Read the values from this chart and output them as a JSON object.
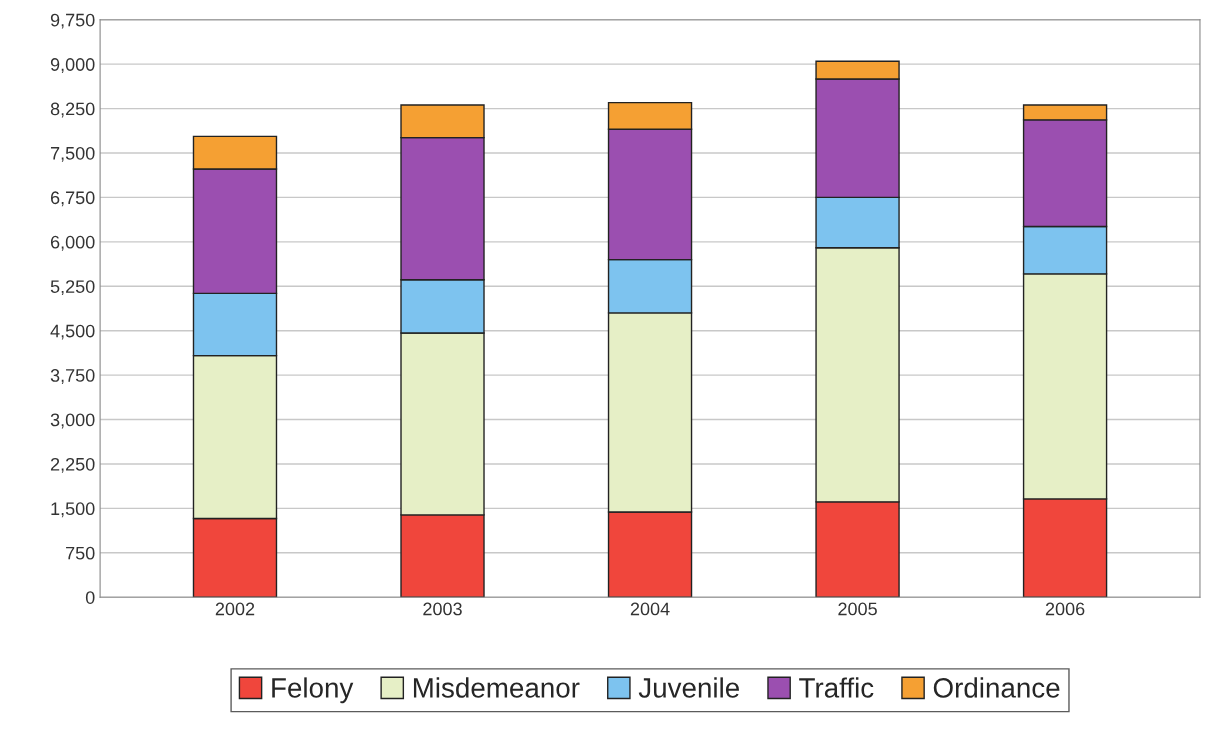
{
  "chart_data": {
    "type": "bar",
    "stacked": true,
    "categories": [
      "2002",
      "2003",
      "2004",
      "2005",
      "2006"
    ],
    "series": [
      {
        "name": "Felony",
        "color": "#f0463c",
        "values": [
          1330,
          1390,
          1440,
          1610,
          1660
        ]
      },
      {
        "name": "Misdemeanor",
        "color": "#e6efc6",
        "values": [
          2750,
          3070,
          3360,
          4290,
          3800
        ]
      },
      {
        "name": "Juvenile",
        "color": "#7dc3ef",
        "values": [
          1050,
          900,
          900,
          850,
          800
        ]
      },
      {
        "name": "Traffic",
        "color": "#9b4fb0",
        "values": [
          2100,
          2400,
          2200,
          2000,
          1800
        ]
      },
      {
        "name": "Ordinance",
        "color": "#f5a033",
        "values": [
          550,
          550,
          450,
          300,
          250
        ]
      }
    ],
    "ylim": [
      0,
      9750
    ],
    "yticks": [
      {
        "value": 0,
        "label": "0"
      },
      {
        "value": 750,
        "label": "750"
      },
      {
        "value": 1500,
        "label": "1,500"
      },
      {
        "value": 2250,
        "label": "2,250"
      },
      {
        "value": 3000,
        "label": "3,000"
      },
      {
        "value": 3750,
        "label": "3,750"
      },
      {
        "value": 4500,
        "label": "4,500"
      },
      {
        "value": 5250,
        "label": "5,250"
      },
      {
        "value": 6000,
        "label": "6,000"
      },
      {
        "value": 6750,
        "label": "6,750"
      },
      {
        "value": 7500,
        "label": "7,500"
      },
      {
        "value": 8250,
        "label": "8,250"
      },
      {
        "value": 9000,
        "label": "9,000"
      },
      {
        "value": 9750,
        "label": "9,750"
      }
    ],
    "grid": "y",
    "legend": "bottom"
  }
}
